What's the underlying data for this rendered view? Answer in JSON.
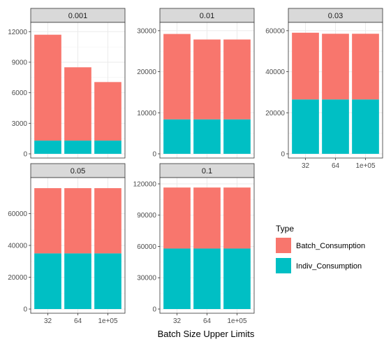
{
  "chart_data": {
    "type": "bar",
    "stacked": true,
    "xlabel": "Batch Size Upper Limits",
    "ylabel": "",
    "categories": [
      "32",
      "64",
      "1e+05"
    ],
    "legend": {
      "title": "Type",
      "placement": "right",
      "entries": [
        {
          "name": "Batch_Consumption",
          "color": "#F8766D"
        },
        {
          "name": "Indiv_Consumption",
          "color": "#00BFC4"
        }
      ]
    },
    "grid": true,
    "panels": [
      {
        "label": "0.001",
        "ylim": [
          0,
          12500
        ],
        "yticks": [
          0,
          3000,
          6000,
          9000,
          12000
        ],
        "ytick_labels": [
          "0",
          "3000",
          "6000",
          "9000",
          "12000"
        ],
        "show_x_ticks": false,
        "series": [
          {
            "name": "Indiv_Consumption",
            "values": [
              1300,
              1300,
              1300
            ]
          },
          {
            "name": "Batch_Consumption",
            "values": [
              10400,
              7200,
              5750
            ]
          }
        ]
      },
      {
        "label": "0.01",
        "ylim": [
          0,
          31000
        ],
        "yticks": [
          0,
          10000,
          20000,
          30000
        ],
        "ytick_labels": [
          "0",
          "10000",
          "20000",
          "30000"
        ],
        "show_x_ticks": false,
        "series": [
          {
            "name": "Indiv_Consumption",
            "values": [
              8400,
              8400,
              8400
            ]
          },
          {
            "name": "Batch_Consumption",
            "values": [
              20800,
              19450,
              19450
            ]
          }
        ]
      },
      {
        "label": "0.03",
        "ylim": [
          0,
          62000
        ],
        "yticks": [
          0,
          20000,
          40000,
          60000
        ],
        "ytick_labels": [
          "0",
          "20000",
          "40000",
          "60000"
        ],
        "show_x_ticks": true,
        "series": [
          {
            "name": "Indiv_Consumption",
            "values": [
              26500,
              26500,
              26500
            ]
          },
          {
            "name": "Batch_Consumption",
            "values": [
              32500,
              32000,
              32000
            ]
          }
        ]
      },
      {
        "label": "0.05",
        "ylim": [
          0,
          80000
        ],
        "yticks": [
          0,
          20000,
          40000,
          60000
        ],
        "ytick_labels": [
          "0",
          "20000",
          "40000",
          "60000"
        ],
        "show_x_ticks": true,
        "series": [
          {
            "name": "Indiv_Consumption",
            "values": [
              35000,
              35000,
              35000
            ]
          },
          {
            "name": "Batch_Consumption",
            "values": [
              41000,
              41000,
              41000
            ]
          }
        ]
      },
      {
        "label": "0.1",
        "ylim": [
          0,
          122000
        ],
        "yticks": [
          0,
          30000,
          60000,
          90000,
          120000
        ],
        "ytick_labels": [
          "0",
          "30000",
          "60000",
          "90000",
          "120000"
        ],
        "show_x_ticks": true,
        "series": [
          {
            "name": "Indiv_Consumption",
            "values": [
              58000,
              58000,
              58000
            ]
          },
          {
            "name": "Batch_Consumption",
            "values": [
              58500,
              58500,
              58500
            ]
          }
        ]
      }
    ]
  }
}
